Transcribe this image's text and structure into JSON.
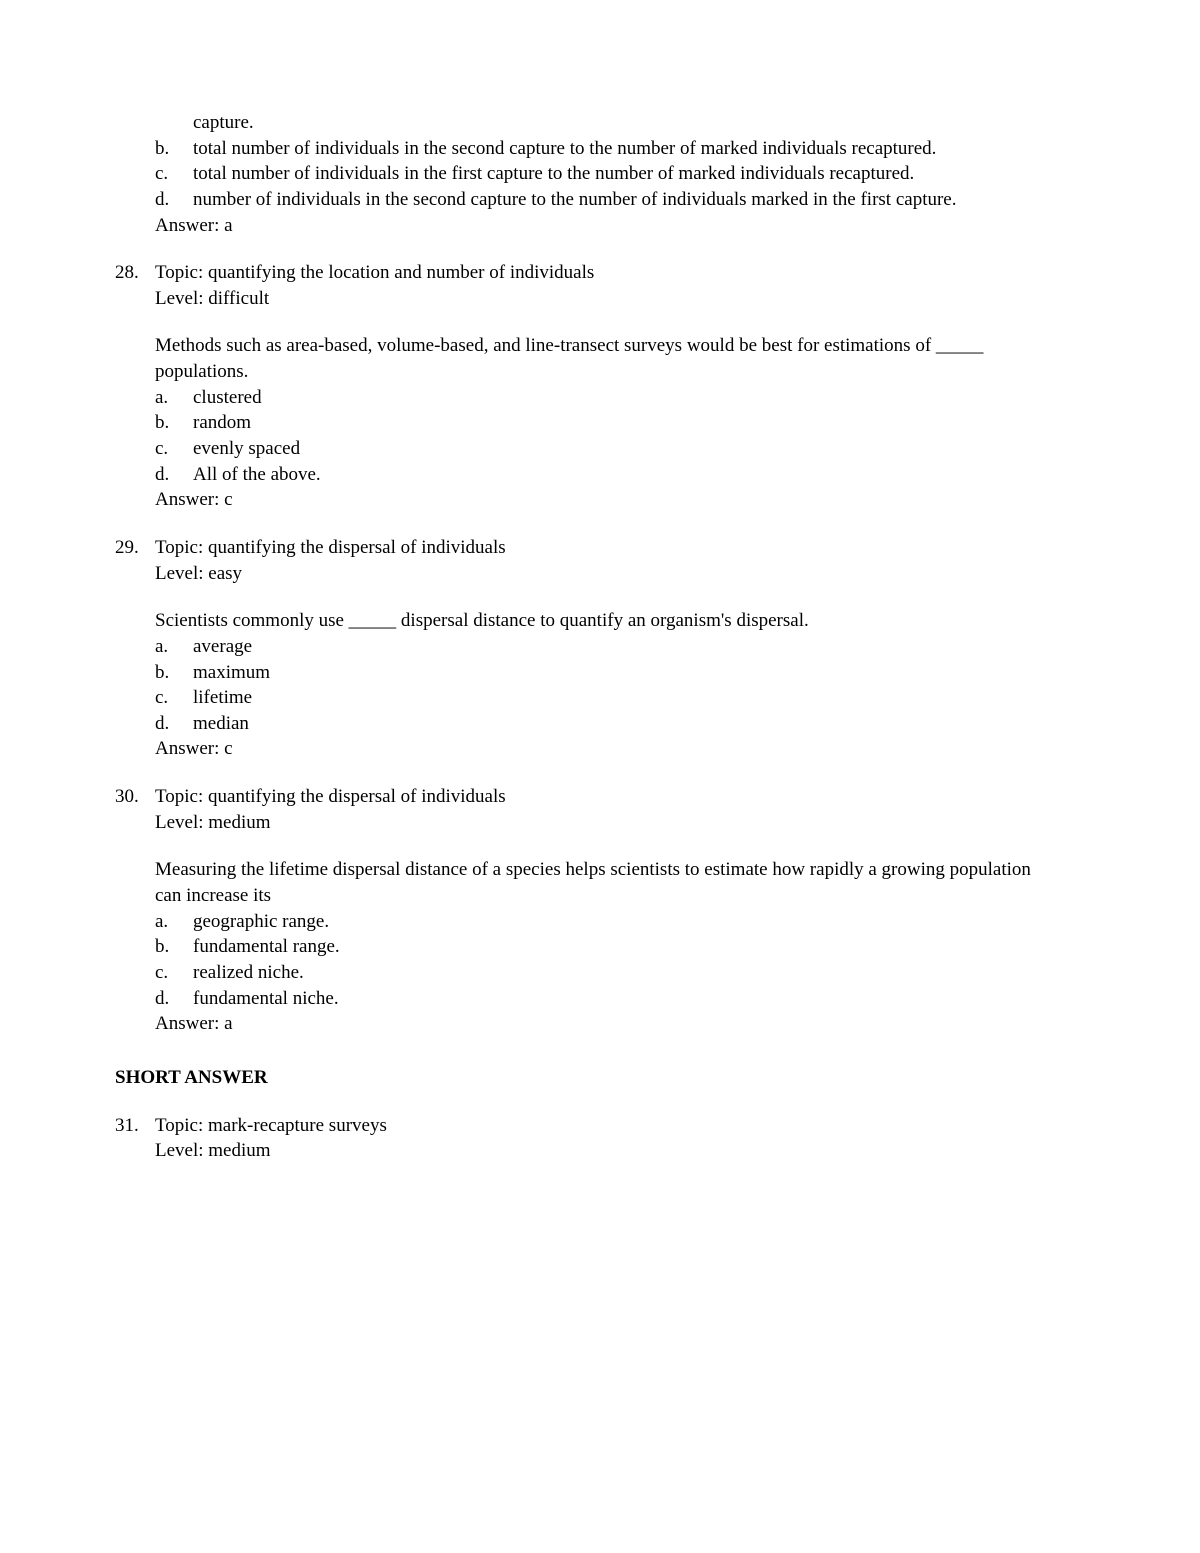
{
  "q27": {
    "leading_fragment": "capture.",
    "choices": [
      {
        "letter": "b.",
        "text": "total number of individuals in the second capture to the number of marked individuals recaptured."
      },
      {
        "letter": "c.",
        "text": "total number of individuals in the first capture to the number of marked individuals recaptured."
      },
      {
        "letter": "d.",
        "text": "number of individuals in the second capture to the number of individuals marked in the first capture."
      }
    ],
    "answer": "Answer: a"
  },
  "q28": {
    "number": "28.",
    "topic": "Topic: quantifying the location and number of individuals",
    "level": "Level: difficult",
    "stem": "Methods such as area-based, volume-based, and line-transect surveys would be best for estimations of _____ populations.",
    "choices": [
      {
        "letter": "a.",
        "text": "clustered"
      },
      {
        "letter": "b.",
        "text": "random"
      },
      {
        "letter": "c.",
        "text": "evenly spaced"
      },
      {
        "letter": "d.",
        "text": "All of the above."
      }
    ],
    "answer": "Answer: c"
  },
  "q29": {
    "number": "29.",
    "topic": "Topic: quantifying the dispersal of individuals",
    "level": "Level: easy",
    "stem": "Scientists commonly use _____ dispersal distance to quantify an organism's dispersal.",
    "choices": [
      {
        "letter": "a.",
        "text": "average"
      },
      {
        "letter": "b.",
        "text": "maximum"
      },
      {
        "letter": "c.",
        "text": "lifetime"
      },
      {
        "letter": "d.",
        "text": "median"
      }
    ],
    "answer": "Answer: c"
  },
  "q30": {
    "number": "30.",
    "topic": "Topic: quantifying the dispersal of individuals",
    "level": "Level: medium",
    "stem": "Measuring the lifetime dispersal distance of a species helps scientists to estimate how rapidly a growing population can increase its",
    "choices": [
      {
        "letter": "a.",
        "text": "geographic range."
      },
      {
        "letter": "b.",
        "text": "fundamental range."
      },
      {
        "letter": "c.",
        "text": "realized niche."
      },
      {
        "letter": "d.",
        "text": "fundamental niche."
      }
    ],
    "answer": "Answer: a"
  },
  "section_short_answer": "SHORT ANSWER",
  "q31": {
    "number": "31.",
    "topic": "Topic: mark-recapture surveys",
    "level": "Level: medium"
  }
}
